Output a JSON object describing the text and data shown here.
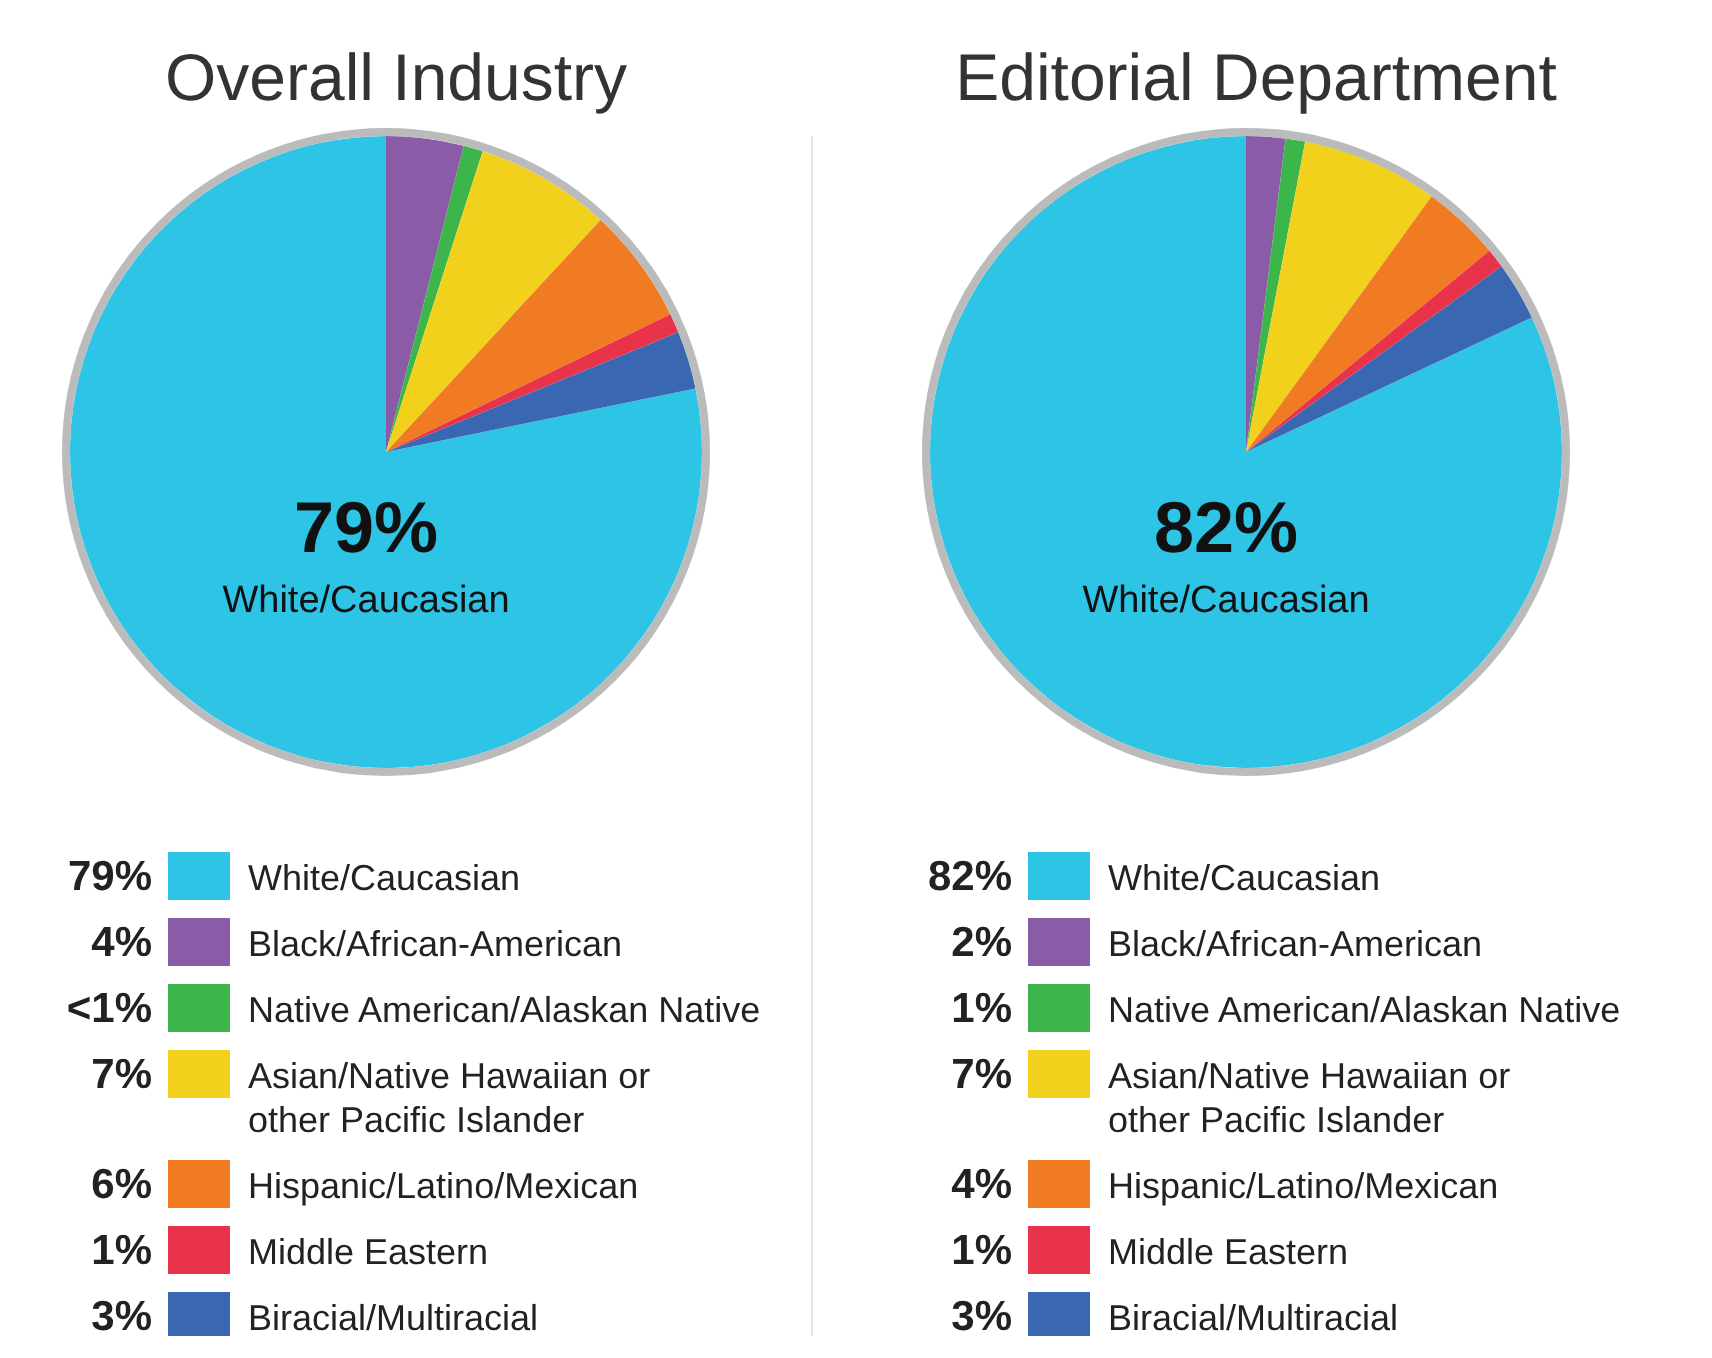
{
  "chart_data": [
    {
      "type": "pie",
      "title": "Overall Industry",
      "categories": [
        "White/Caucasian",
        "Black/African-American",
        "Native American/Alaskan Native",
        "Asian/Native Hawaiian or other Pacific Islander",
        "Hispanic/Latino/Mexican",
        "Middle Eastern",
        "Biracial/Multiracial"
      ],
      "values": [
        79,
        4,
        1,
        7,
        6,
        1,
        3
      ],
      "value_labels": [
        "79%",
        "4%",
        "<1%",
        "7%",
        "6%",
        "1%",
        "3%"
      ],
      "colors": [
        "#2ec4e6",
        "#8a5ca8",
        "#3cb54a",
        "#f2d11c",
        "#f07b22",
        "#e8334a",
        "#3a67b1"
      ],
      "legend": "bottom"
    },
    {
      "type": "pie",
      "title": "Editorial Department",
      "categories": [
        "White/Caucasian",
        "Black/African-American",
        "Native American/Alaskan Native",
        "Asian/Native Hawaiian or other Pacific Islander",
        "Hispanic/Latino/Mexican",
        "Middle Eastern",
        "Biracial/Multiracial"
      ],
      "values": [
        82,
        2,
        1,
        7,
        4,
        1,
        3
      ],
      "value_labels": [
        "82%",
        "2%",
        "1%",
        "7%",
        "4%",
        "1%",
        "3%"
      ],
      "colors": [
        "#2ec4e6",
        "#8a5ca8",
        "#3cb54a",
        "#f2d11c",
        "#f07b22",
        "#e8334a",
        "#3a67b1"
      ],
      "legend": "bottom"
    }
  ]
}
